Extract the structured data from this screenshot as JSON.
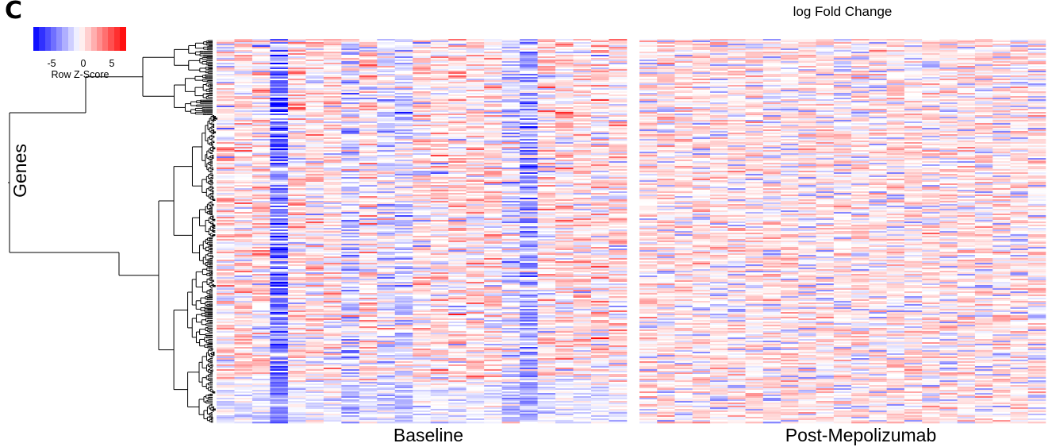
{
  "panel_label": "C",
  "chart_data": {
    "type": "heatmap",
    "title": "log Fold Change",
    "ylabel": "Genes",
    "color_key": {
      "label": "Row Z-Score",
      "ticks": [
        "-5",
        "0",
        "5"
      ],
      "range": [
        -8,
        8
      ],
      "low_color": "#0000ff",
      "mid_color": "#ffffff",
      "high_color": "#ff0000"
    },
    "panels": [
      {
        "name": "Baseline",
        "columns": 23
      },
      {
        "name": "Post-Mepolizumab",
        "columns": 23
      }
    ],
    "dendrogram": "rows"
  }
}
